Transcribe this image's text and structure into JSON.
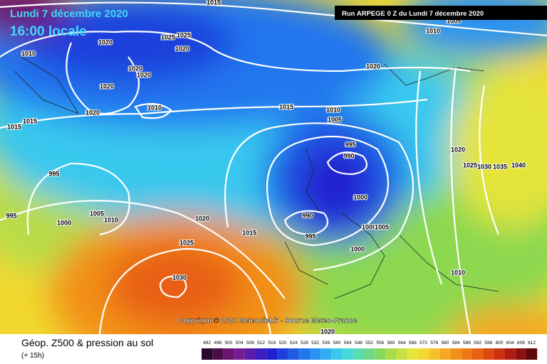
{
  "header": {
    "date": "Lundi 7 décembre 2020",
    "time": "16:00 locale",
    "run": "Run ARPEGE 0 Z du Lundi 7 décembre 2020"
  },
  "copyright": "Copyright © 2020 Meteociel.fr - Source Meteo-France",
  "footer": {
    "title": "Géop. Z500 & pression au sol",
    "lead": "(+ 15h)"
  },
  "isobar_labels": [
    "1015",
    "1010",
    "1020",
    "1025",
    "1025",
    "1020",
    "1020",
    "1020",
    "1020",
    "1020",
    "1015",
    "1015",
    "1010",
    "1015",
    "1010",
    "1005",
    "995",
    "990",
    "1020",
    "1010",
    "1005",
    "995",
    "995",
    "1000",
    "1005",
    "1010",
    "1020",
    "1015",
    "1025",
    "1030",
    "1000",
    "990",
    "995",
    "1000",
    "1005",
    "1000",
    "1020",
    "1025",
    "1030",
    "1035",
    "1040",
    "1010",
    "1020"
  ],
  "scale": {
    "values": [
      492,
      496,
      500,
      504,
      508,
      512,
      516,
      520,
      524,
      528,
      532,
      536,
      540,
      544,
      548,
      552,
      556,
      560,
      564,
      568,
      572,
      576,
      580,
      584,
      588,
      592,
      596,
      600,
      604,
      608,
      612
    ],
    "colors": [
      "#2a0a2a",
      "#4a0f4a",
      "#6a1670",
      "#7a1c90",
      "#5a1ca8",
      "#3a1cc0",
      "#2020d0",
      "#1f3fdc",
      "#1f5ae6",
      "#2276ee",
      "#2a92f2",
      "#30aef2",
      "#38c8ee",
      "#48d8d8",
      "#58dcb0",
      "#70d888",
      "#88d860",
      "#a8dc48",
      "#c8e040",
      "#e4e43a",
      "#f2d830",
      "#f6c028",
      "#f4a820",
      "#f29018",
      "#ee7814",
      "#e86012",
      "#dc4810",
      "#cc3010",
      "#b01c10",
      "#8c1010",
      "#600808"
    ]
  }
}
